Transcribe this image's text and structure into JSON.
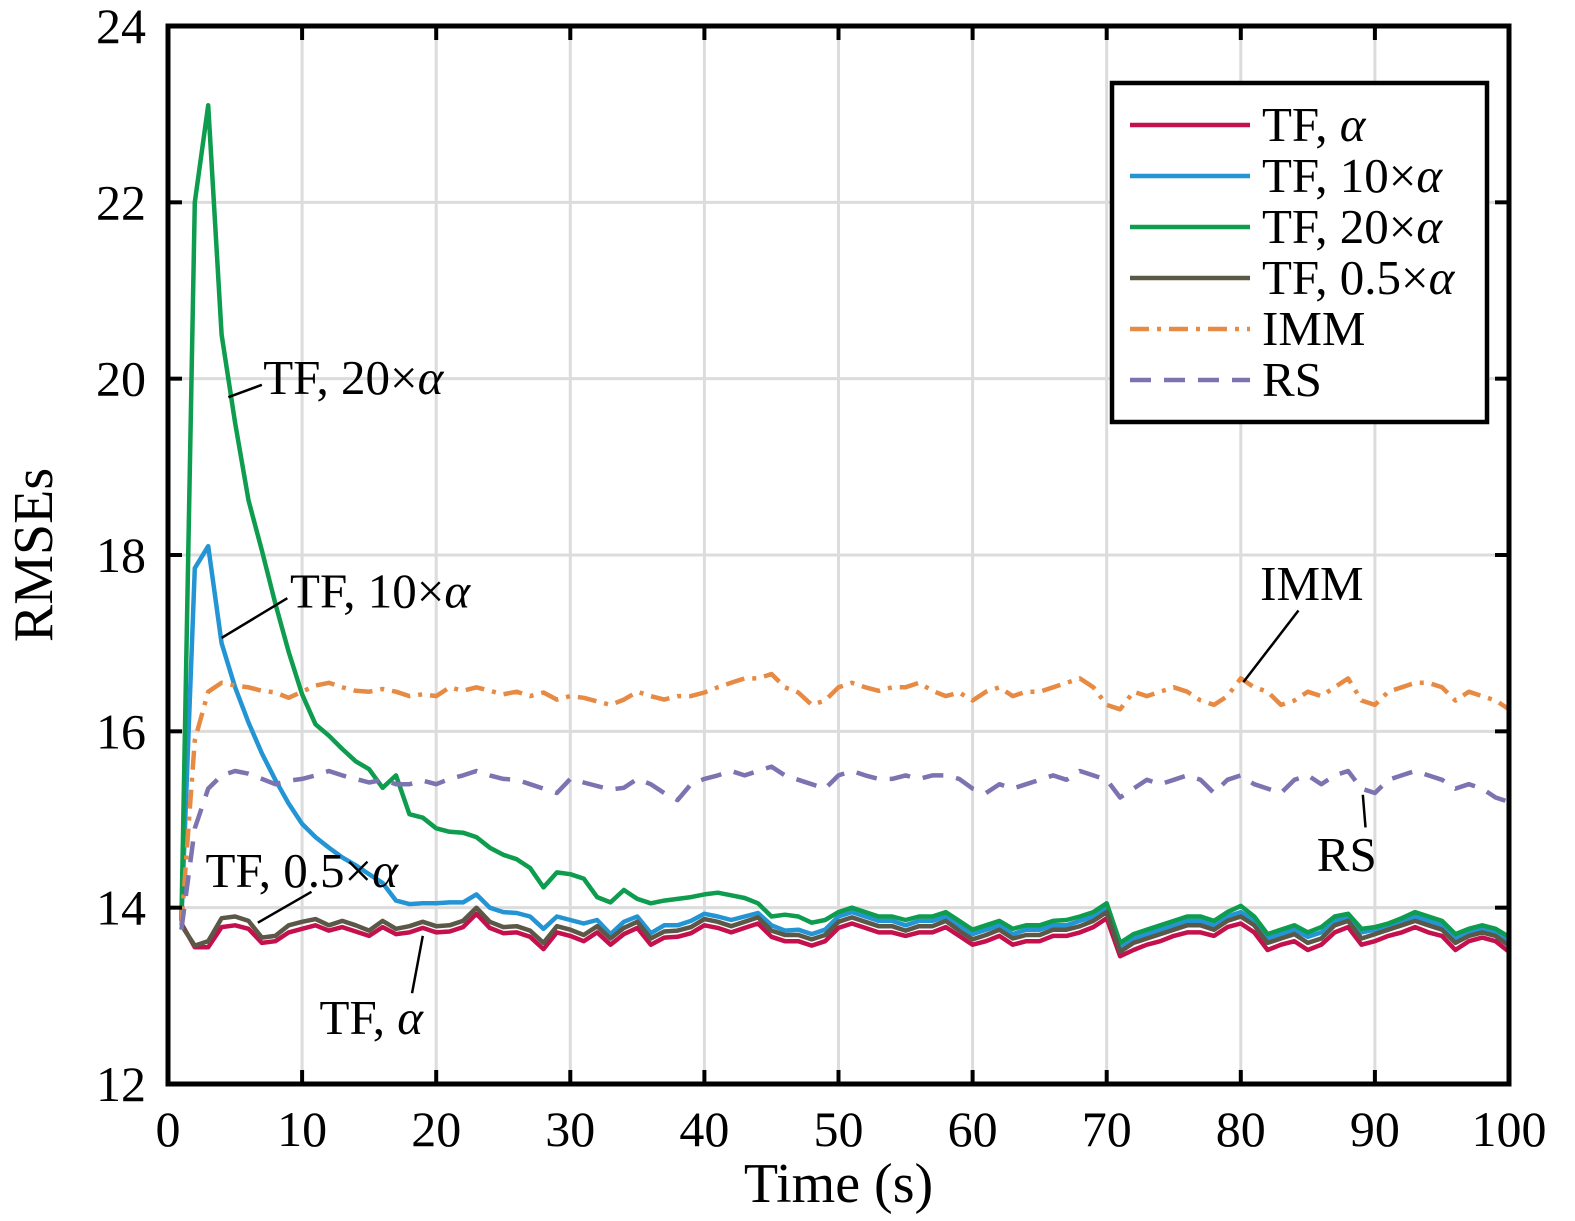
{
  "figure": {
    "background": "#FFFFFF",
    "axis_color": "#000000",
    "grid_color": "#DCDCDC"
  },
  "chart_data": {
    "type": "line",
    "title": "",
    "xlabel": "Time (s)",
    "ylabel": "RMSEs",
    "xlim": [
      0,
      100
    ],
    "ylim": [
      12,
      24
    ],
    "x_ticks": [
      0,
      10,
      20,
      30,
      40,
      50,
      60,
      70,
      80,
      90,
      100
    ],
    "y_ticks": [
      12,
      14,
      16,
      18,
      20,
      22,
      24
    ],
    "grid": true,
    "legend_position": "top-right",
    "x": [
      1,
      2,
      3,
      4,
      5,
      6,
      7,
      8,
      9,
      10,
      11,
      12,
      13,
      14,
      15,
      16,
      17,
      18,
      19,
      20,
      21,
      22,
      23,
      24,
      25,
      26,
      27,
      28,
      29,
      30,
      31,
      32,
      33,
      34,
      35,
      36,
      37,
      38,
      39,
      40,
      41,
      42,
      43,
      44,
      45,
      46,
      47,
      48,
      49,
      50,
      51,
      52,
      53,
      54,
      55,
      56,
      57,
      58,
      59,
      60,
      61,
      62,
      63,
      64,
      65,
      66,
      67,
      68,
      69,
      70,
      71,
      72,
      73,
      74,
      75,
      76,
      77,
      78,
      79,
      80,
      81,
      82,
      83,
      84,
      85,
      86,
      87,
      88,
      89,
      90,
      91,
      92,
      93,
      94,
      95,
      96,
      97,
      98,
      99,
      100
    ],
    "series": [
      {
        "name": "TF, α",
        "color": "#C5104E",
        "line_style": "solid",
        "values": [
          13.82,
          13.55,
          13.55,
          13.78,
          13.8,
          13.76,
          13.6,
          13.62,
          13.72,
          13.76,
          13.8,
          13.74,
          13.78,
          13.73,
          13.68,
          13.78,
          13.7,
          13.72,
          13.77,
          13.72,
          13.73,
          13.78,
          13.93,
          13.77,
          13.71,
          13.72,
          13.67,
          13.53,
          13.72,
          13.68,
          13.62,
          13.72,
          13.58,
          13.7,
          13.77,
          13.58,
          13.66,
          13.67,
          13.71,
          13.8,
          13.77,
          13.72,
          13.77,
          13.82,
          13.67,
          13.62,
          13.62,
          13.57,
          13.62,
          13.77,
          13.82,
          13.77,
          13.72,
          13.72,
          13.68,
          13.72,
          13.72,
          13.78,
          13.68,
          13.58,
          13.62,
          13.68,
          13.58,
          13.62,
          13.62,
          13.68,
          13.68,
          13.72,
          13.78,
          13.88,
          13.45,
          13.52,
          13.58,
          13.62,
          13.68,
          13.72,
          13.72,
          13.68,
          13.78,
          13.82,
          13.72,
          13.52,
          13.58,
          13.62,
          13.52,
          13.58,
          13.72,
          13.78,
          13.58,
          13.62,
          13.68,
          13.72,
          13.78,
          13.72,
          13.68,
          13.52,
          13.62,
          13.66,
          13.62,
          13.5
        ]
      },
      {
        "name": "TF, 10×α",
        "color": "#2395D4",
        "line_style": "solid",
        "values": [
          13.85,
          17.85,
          18.1,
          17.0,
          16.5,
          16.1,
          15.75,
          15.45,
          15.18,
          14.95,
          14.8,
          14.68,
          14.57,
          14.48,
          14.38,
          14.28,
          14.08,
          14.04,
          14.05,
          14.05,
          14.06,
          14.06,
          14.15,
          14.0,
          13.95,
          13.94,
          13.9,
          13.76,
          13.9,
          13.86,
          13.82,
          13.86,
          13.7,
          13.84,
          13.9,
          13.71,
          13.8,
          13.8,
          13.85,
          13.93,
          13.9,
          13.86,
          13.9,
          13.94,
          13.8,
          13.74,
          13.75,
          13.7,
          13.75,
          13.9,
          13.95,
          13.9,
          13.85,
          13.85,
          13.8,
          13.85,
          13.85,
          13.9,
          13.8,
          13.7,
          13.75,
          13.8,
          13.7,
          13.75,
          13.75,
          13.8,
          13.8,
          13.85,
          13.9,
          14.0,
          13.55,
          13.65,
          13.7,
          13.75,
          13.8,
          13.85,
          13.85,
          13.8,
          13.9,
          13.95,
          13.85,
          13.65,
          13.7,
          13.75,
          13.67,
          13.72,
          13.85,
          13.9,
          13.72,
          13.75,
          13.8,
          13.85,
          13.9,
          13.85,
          13.8,
          13.65,
          13.72,
          13.76,
          13.72,
          13.62
        ]
      },
      {
        "name": "TF, 20×α",
        "color": "#0E9C4E",
        "line_style": "solid",
        "values": [
          13.85,
          22.0,
          23.1,
          20.5,
          19.5,
          18.62,
          18.05,
          17.45,
          16.9,
          16.42,
          16.08,
          15.95,
          15.8,
          15.66,
          15.57,
          15.36,
          15.5,
          15.06,
          15.02,
          14.9,
          14.86,
          14.85,
          14.8,
          14.68,
          14.6,
          14.55,
          14.45,
          14.23,
          14.4,
          14.38,
          14.33,
          14.12,
          14.06,
          14.2,
          14.1,
          14.05,
          14.08,
          14.1,
          14.12,
          14.15,
          14.17,
          14.14,
          14.11,
          14.05,
          13.9,
          13.92,
          13.9,
          13.83,
          13.86,
          13.95,
          14.0,
          13.95,
          13.9,
          13.9,
          13.86,
          13.9,
          13.9,
          13.95,
          13.85,
          13.75,
          13.8,
          13.85,
          13.76,
          13.8,
          13.8,
          13.85,
          13.86,
          13.9,
          13.95,
          14.05,
          13.6,
          13.7,
          13.75,
          13.8,
          13.85,
          13.9,
          13.9,
          13.85,
          13.95,
          14.02,
          13.9,
          13.7,
          13.75,
          13.8,
          13.72,
          13.78,
          13.9,
          13.93,
          13.76,
          13.78,
          13.82,
          13.88,
          13.95,
          13.9,
          13.85,
          13.7,
          13.76,
          13.8,
          13.76,
          13.67
        ]
      },
      {
        "name": "TF, 0.5×α",
        "color": "#5C5847",
        "line_style": "solid",
        "values": [
          13.8,
          13.57,
          13.62,
          13.88,
          13.9,
          13.85,
          13.66,
          13.68,
          13.8,
          13.84,
          13.87,
          13.8,
          13.85,
          13.8,
          13.74,
          13.85,
          13.76,
          13.79,
          13.84,
          13.79,
          13.8,
          13.85,
          14.0,
          13.84,
          13.78,
          13.79,
          13.74,
          13.6,
          13.79,
          13.75,
          13.69,
          13.79,
          13.65,
          13.77,
          13.84,
          13.65,
          13.73,
          13.74,
          13.78,
          13.87,
          13.84,
          13.79,
          13.84,
          13.89,
          13.74,
          13.69,
          13.69,
          13.64,
          13.69,
          13.84,
          13.89,
          13.84,
          13.79,
          13.79,
          13.74,
          13.79,
          13.79,
          13.85,
          13.74,
          13.64,
          13.69,
          13.75,
          13.65,
          13.69,
          13.69,
          13.75,
          13.75,
          13.79,
          13.85,
          13.95,
          13.5,
          13.6,
          13.65,
          13.7,
          13.75,
          13.8,
          13.8,
          13.75,
          13.85,
          13.9,
          13.8,
          13.6,
          13.65,
          13.7,
          13.6,
          13.65,
          13.8,
          13.85,
          13.65,
          13.7,
          13.75,
          13.8,
          13.85,
          13.8,
          13.75,
          13.6,
          13.68,
          13.72,
          13.68,
          13.57
        ]
      },
      {
        "name": "IMM",
        "color": "#E78A43",
        "line_style": "dashdot",
        "values": [
          13.8,
          15.9,
          16.45,
          16.55,
          16.52,
          16.5,
          16.46,
          16.44,
          16.38,
          16.45,
          16.52,
          16.55,
          16.5,
          16.46,
          16.45,
          16.48,
          16.45,
          16.4,
          16.42,
          16.4,
          16.5,
          16.46,
          16.5,
          16.46,
          16.42,
          16.45,
          16.4,
          16.44,
          16.36,
          16.4,
          16.38,
          16.34,
          16.3,
          16.36,
          16.45,
          16.4,
          16.36,
          16.4,
          16.4,
          16.44,
          16.5,
          16.55,
          16.6,
          16.6,
          16.65,
          16.5,
          16.44,
          16.3,
          16.35,
          16.5,
          16.55,
          16.5,
          16.46,
          16.5,
          16.5,
          16.55,
          16.46,
          16.4,
          16.44,
          16.35,
          16.45,
          16.5,
          16.4,
          16.45,
          16.45,
          16.5,
          16.55,
          16.6,
          16.5,
          16.3,
          16.25,
          16.45,
          16.4,
          16.45,
          16.5,
          16.45,
          16.35,
          16.3,
          16.4,
          16.6,
          16.5,
          16.45,
          16.3,
          16.35,
          16.45,
          16.4,
          16.5,
          16.6,
          16.35,
          16.3,
          16.45,
          16.5,
          16.55,
          16.55,
          16.5,
          16.35,
          16.45,
          16.4,
          16.35,
          16.25
        ]
      },
      {
        "name": "RS",
        "color": "#7C74B1",
        "line_style": "dashed",
        "values": [
          13.75,
          14.9,
          15.35,
          15.5,
          15.55,
          15.52,
          15.46,
          15.4,
          15.44,
          15.46,
          15.5,
          15.55,
          15.5,
          15.46,
          15.42,
          15.45,
          15.4,
          15.4,
          15.44,
          15.4,
          15.46,
          15.5,
          15.55,
          15.5,
          15.46,
          15.45,
          15.4,
          15.35,
          15.3,
          15.46,
          15.42,
          15.38,
          15.34,
          15.36,
          15.46,
          15.4,
          15.3,
          15.22,
          15.4,
          15.46,
          15.5,
          15.55,
          15.5,
          15.55,
          15.6,
          15.5,
          15.45,
          15.4,
          15.35,
          15.5,
          15.55,
          15.5,
          15.46,
          15.46,
          15.5,
          15.46,
          15.5,
          15.5,
          15.46,
          15.35,
          15.3,
          15.4,
          15.35,
          15.4,
          15.45,
          15.5,
          15.45,
          15.55,
          15.5,
          15.45,
          15.25,
          15.35,
          15.45,
          15.4,
          15.45,
          15.5,
          15.45,
          15.3,
          15.45,
          15.5,
          15.4,
          15.35,
          15.3,
          15.45,
          15.5,
          15.4,
          15.5,
          15.55,
          15.35,
          15.3,
          15.45,
          15.5,
          15.55,
          15.5,
          15.45,
          15.35,
          15.4,
          15.35,
          15.25,
          15.2
        ]
      }
    ],
    "annotations": [
      {
        "text": "TF, 20×α",
        "x": 7.1,
        "y": 20.02,
        "anchor": "start",
        "leader": [
          [
            4.5,
            19.79
          ],
          [
            7.0,
            19.93
          ]
        ]
      },
      {
        "text": "TF, 10×α",
        "x": 9.1,
        "y": 17.6,
        "anchor": "start",
        "leader": [
          [
            4.0,
            17.06
          ],
          [
            8.9,
            17.51
          ]
        ]
      },
      {
        "text": "IMM",
        "x": 85.3,
        "y": 17.68,
        "anchor": "middle",
        "leader": [
          [
            80.2,
            16.56
          ],
          [
            84.3,
            17.37
          ]
        ]
      },
      {
        "text": "RS",
        "x": 87.9,
        "y": 14.61,
        "anchor": "middle",
        "leader": [
          [
            89.1,
            15.28
          ],
          [
            89.3,
            14.91
          ]
        ]
      },
      {
        "text": "TF, 0.5×α",
        "x": 2.8,
        "y": 14.43,
        "anchor": "start",
        "leader": [
          [
            10.7,
            14.18
          ],
          [
            6.7,
            13.83
          ]
        ]
      },
      {
        "text": "TF, α",
        "x": 11.3,
        "y": 12.76,
        "anchor": "start",
        "leader": [
          [
            18.2,
            13.03
          ],
          [
            19.0,
            13.68
          ]
        ]
      }
    ]
  }
}
